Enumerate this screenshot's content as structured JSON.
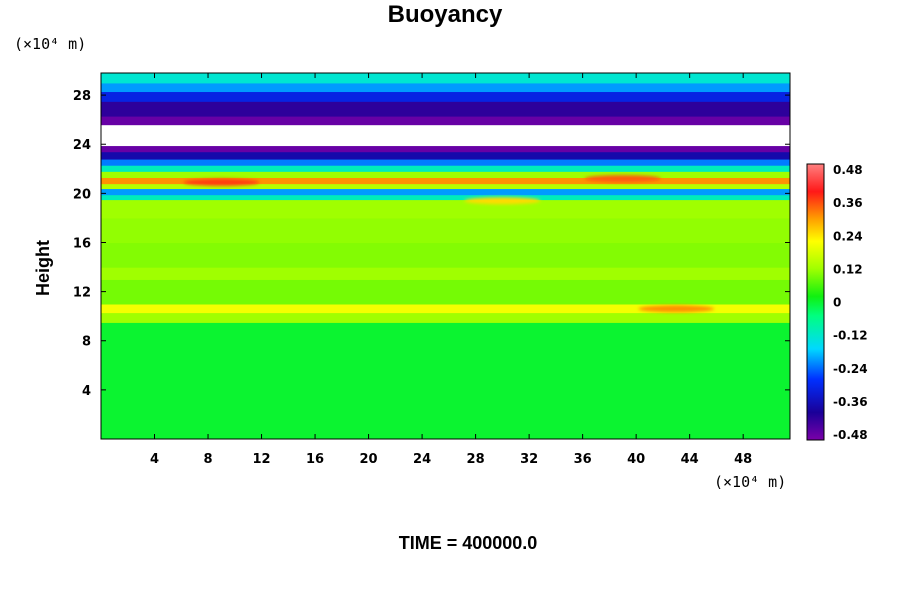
{
  "chart_data": {
    "type": "heatmap",
    "title": "Buoyancy",
    "ylabel": "Height",
    "xlabel": "",
    "x_unit_label": "(×10⁴ m)",
    "y_unit_label": "(×10⁴ m)",
    "xlim": [
      0,
      51.5
    ],
    "ylim": [
      0,
      29.8
    ],
    "x_ticks": [
      4,
      8,
      12,
      16,
      20,
      24,
      28,
      32,
      36,
      40,
      44,
      48
    ],
    "y_ticks": [
      4,
      8,
      12,
      16,
      20,
      24,
      28
    ],
    "colorbar": {
      "range": [
        -0.48,
        0.48
      ],
      "ticks": [
        "0.48",
        "0.36",
        "0.24",
        "0.12",
        "0",
        "-0.12",
        "-0.24",
        "-0.36",
        "-0.48"
      ],
      "tick_values": [
        0.48,
        0.36,
        0.24,
        0.12,
        0,
        -0.12,
        -0.24,
        -0.36,
        -0.48
      ]
    },
    "bands": [
      {
        "y0": 0.0,
        "y1": 9.5,
        "value": 0.0
      },
      {
        "y0": 9.5,
        "y1": 10.3,
        "value": 0.12
      },
      {
        "y0": 10.3,
        "y1": 11.0,
        "value": 0.2
      },
      {
        "y0": 11.0,
        "y1": 13.0,
        "value": 0.09
      },
      {
        "y0": 13.0,
        "y1": 14.0,
        "value": 0.12
      },
      {
        "y0": 14.0,
        "y1": 16.0,
        "value": 0.1
      },
      {
        "y0": 16.0,
        "y1": 18.0,
        "value": 0.11
      },
      {
        "y0": 18.0,
        "y1": 19.5,
        "value": 0.12
      },
      {
        "y0": 19.5,
        "y1": 19.9,
        "value": -0.1
      },
      {
        "y0": 19.9,
        "y1": 20.4,
        "value": -0.2
      },
      {
        "y0": 20.4,
        "y1": 20.8,
        "value": 0.14
      },
      {
        "y0": 20.8,
        "y1": 21.3,
        "value": 0.3
      },
      {
        "y0": 21.3,
        "y1": 21.8,
        "value": 0.12
      },
      {
        "y0": 21.8,
        "y1": 22.3,
        "value": -0.1
      },
      {
        "y0": 22.3,
        "y1": 22.8,
        "value": -0.22
      },
      {
        "y0": 22.8,
        "y1": 23.4,
        "value": -0.36
      },
      {
        "y0": 23.4,
        "y1": 23.9,
        "value": -0.46
      },
      {
        "y0": 23.9,
        "y1": 25.6,
        "value": null
      },
      {
        "y0": 25.6,
        "y1": 26.3,
        "value": -0.46
      },
      {
        "y0": 26.3,
        "y1": 27.5,
        "value": -0.4
      },
      {
        "y0": 27.5,
        "y1": 28.3,
        "value": -0.3
      },
      {
        "y0": 28.3,
        "y1": 29.0,
        "value": -0.2
      },
      {
        "y0": 29.0,
        "y1": 29.8,
        "value": -0.12
      }
    ],
    "anomalies": [
      {
        "x": 9,
        "y": 20.9,
        "value": 0.36
      },
      {
        "x": 39,
        "y": 21.2,
        "value": 0.34
      },
      {
        "x": 43,
        "y": 10.6,
        "value": 0.3
      },
      {
        "x": 30,
        "y": 19.4,
        "value": 0.24
      }
    ],
    "time_label": "TIME = 400000.0"
  }
}
